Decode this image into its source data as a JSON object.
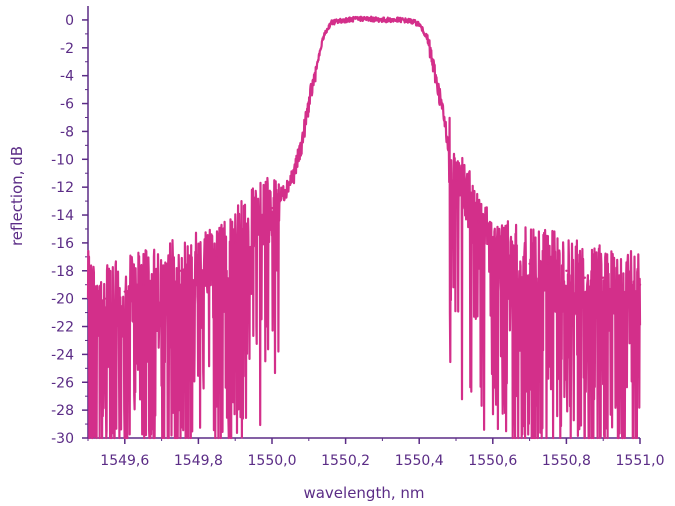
{
  "chart_data": {
    "type": "line",
    "xlabel": "wavelength, nm",
    "ylabel": "reflection, dB",
    "xlim": [
      1549.5,
      1551.0
    ],
    "ylim": [
      -30,
      1
    ],
    "x_ticks": [
      1549.6,
      1549.8,
      1550.0,
      1550.2,
      1550.4,
      1550.6,
      1550.8,
      1551.0
    ],
    "x_tick_labels": [
      "1549,6",
      "1549,8",
      "1550,0",
      "1550,2",
      "1550,4",
      "1550,6",
      "1550,8",
      "1551,0"
    ],
    "y_ticks": [
      0,
      -2,
      -4,
      -6,
      -8,
      -10,
      -12,
      -14,
      -16,
      -18,
      -20,
      -22,
      -24,
      -26,
      -28,
      -30
    ],
    "y_tick_labels": [
      "0",
      "-2",
      "-4",
      "-6",
      "-8",
      "-10",
      "-12",
      "-14",
      "-16",
      "-18",
      "-20",
      "-22",
      "-24",
      "-26",
      "-28",
      "-30"
    ],
    "grid": false,
    "colors": {
      "series": "#d32f8a",
      "axis": "#5b2c86"
    },
    "series": [
      {
        "x": [
          1549.5,
          1549.55,
          1549.6,
          1549.65,
          1549.7,
          1549.75,
          1549.8,
          1549.85,
          1549.9,
          1549.95,
          1550.0,
          1550.03,
          1550.06,
          1550.08,
          1550.1,
          1550.12,
          1550.14,
          1550.16,
          1550.2,
          1550.25,
          1550.3,
          1550.35,
          1550.38,
          1550.4,
          1550.42,
          1550.44,
          1550.46,
          1550.48,
          1550.5,
          1550.53,
          1550.56,
          1550.6,
          1550.65,
          1550.7,
          1550.75,
          1550.8,
          1550.85,
          1550.9,
          1550.95,
          1551.0
        ],
        "values": [
          -19,
          -20,
          -19.5,
          -19,
          -18.5,
          -18,
          -17.5,
          -17,
          -16,
          -14.5,
          -13.5,
          -12.5,
          -11,
          -9,
          -6,
          -3.5,
          -1.2,
          -0.2,
          0,
          0.1,
          0,
          0,
          -0.1,
          -0.3,
          -1.2,
          -3.5,
          -6,
          -9,
          -11.5,
          -13,
          -14.5,
          -16.5,
          -17,
          -17.5,
          -17.5,
          -18,
          -18.5,
          -18.5,
          -19,
          -19
        ]
      }
    ]
  }
}
